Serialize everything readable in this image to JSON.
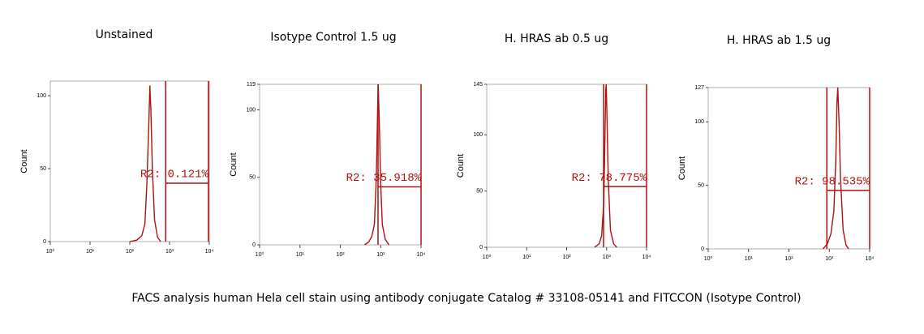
{
  "chart_data": [
    {
      "type": "histogram-line",
      "title": "Unstained",
      "ylabel": "Count",
      "color": "#b01010",
      "x": [
        100,
        150,
        200,
        240,
        270,
        300,
        320,
        340,
        370,
        420,
        500,
        600
      ],
      "values": [
        0,
        1,
        4,
        12,
        40,
        80,
        107,
        90,
        50,
        15,
        3,
        0
      ],
      "xlog": true,
      "xlim": [
        1,
        10000
      ],
      "xticks": [
        {
          "value": 1,
          "label": "10⁰"
        },
        {
          "value": 10,
          "label": "10¹"
        },
        {
          "value": 100,
          "label": "10²"
        },
        {
          "value": 1000,
          "label": "10³"
        },
        {
          "value": 10000,
          "label": "10⁴"
        }
      ],
      "ylim": [
        0,
        110
      ],
      "yticks": [
        0,
        50,
        100
      ],
      "gate": {
        "label": "R2: 0.121%",
        "x": [
          800,
          9500
        ],
        "y": 40
      }
    },
    {
      "type": "histogram-line",
      "title": "Isotype Control 1.5 ug",
      "ylabel": "Count",
      "color": "#b01010",
      "x": [
        400,
        500,
        600,
        700,
        780,
        840,
        870,
        920,
        1000,
        1100,
        1300,
        1600
      ],
      "values": [
        0,
        2,
        6,
        15,
        50,
        100,
        119,
        95,
        45,
        15,
        4,
        0
      ],
      "xlog": true,
      "xlim": [
        1,
        10000
      ],
      "xticks": [
        {
          "value": 1,
          "label": "10⁰"
        },
        {
          "value": 10,
          "label": "10¹"
        },
        {
          "value": 100,
          "label": "10²"
        },
        {
          "value": 1000,
          "label": "10³"
        },
        {
          "value": 10000,
          "label": "10⁴"
        }
      ],
      "ylim": [
        0,
        119
      ],
      "yticks": [
        0,
        50,
        100,
        119
      ],
      "gate": {
        "label": "R2: 35.918%",
        "x": [
          860,
          10000
        ],
        "y": 43
      }
    },
    {
      "type": "histogram-line",
      "title": "H. HRAS ab 0.5 ug",
      "ylabel": "Count",
      "color": "#b01010",
      "x": [
        500,
        650,
        750,
        850,
        900,
        950,
        980,
        1030,
        1100,
        1250,
        1500,
        1800
      ],
      "values": [
        0,
        3,
        10,
        40,
        90,
        140,
        145,
        110,
        60,
        15,
        3,
        0
      ],
      "xlog": true,
      "xlim": [
        1,
        10000
      ],
      "xticks": [
        {
          "value": 1,
          "label": "10⁰"
        },
        {
          "value": 10,
          "label": "10¹"
        },
        {
          "value": 100,
          "label": "10²"
        },
        {
          "value": 1000,
          "label": "10³"
        },
        {
          "value": 10000,
          "label": "10⁴"
        }
      ],
      "ylim": [
        0,
        145
      ],
      "yticks": [
        0,
        50,
        100,
        145
      ],
      "gate": {
        "label": "R2: 78.775%",
        "x": [
          840,
          10000
        ],
        "y": 54
      }
    },
    {
      "type": "histogram-line",
      "title": "H. HRAS ab 1.5 ug",
      "ylabel": "Count",
      "color": "#b01010",
      "x": [
        700,
        900,
        1100,
        1300,
        1450,
        1550,
        1620,
        1750,
        1900,
        2200,
        2600,
        3000
      ],
      "values": [
        0,
        4,
        12,
        30,
        70,
        115,
        127,
        100,
        55,
        15,
        3,
        0
      ],
      "xlog": true,
      "xlim": [
        1,
        10000
      ],
      "xticks": [
        {
          "value": 1,
          "label": "10⁰"
        },
        {
          "value": 10,
          "label": "10¹"
        },
        {
          "value": 100,
          "label": "10²"
        },
        {
          "value": 1000,
          "label": "10³"
        },
        {
          "value": 10000,
          "label": "10⁴"
        }
      ],
      "ylim": [
        0,
        127
      ],
      "yticks": [
        0,
        50,
        100,
        127
      ],
      "gate": {
        "label": "R2: 98.535%",
        "x": [
          870,
          10000
        ],
        "y": 46
      }
    }
  ],
  "caption": "FACS analysis human Hela cell stain using antibody conjugate Catalog # 33108-05141 and FITCCON (Isotype Control)"
}
